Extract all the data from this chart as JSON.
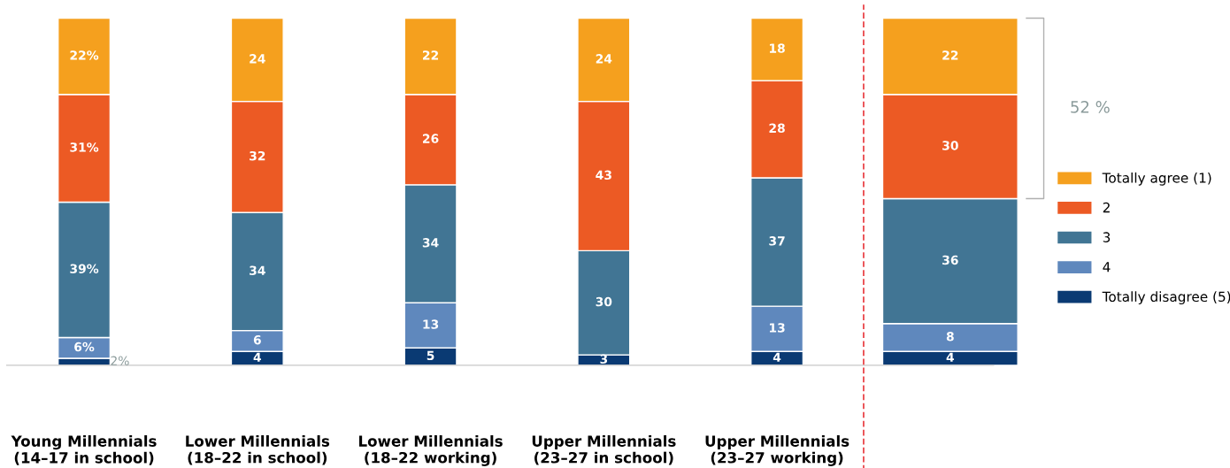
{
  "chart_data": {
    "type": "bar",
    "stacked": true,
    "categories": [
      "Young Millennials\n(14–17 in school)",
      "Lower Millennials\n(18–22 in school)",
      "Lower Millennials\n(18–22 working)",
      "Upper Millennials\n(23–27 in school)",
      "Upper Millennials\n(23–27 working)",
      null
    ],
    "series": [
      {
        "name": "Totally disagree (5)",
        "color": "#0a3a73",
        "values": [
          2,
          4,
          5,
          3,
          4,
          4
        ],
        "value_labels": [
          "2%",
          "4",
          "5",
          "3",
          "4",
          "4"
        ]
      },
      {
        "name": "4",
        "color": "#5f88bd",
        "values": [
          6,
          6,
          13,
          null,
          13,
          8
        ],
        "value_labels": [
          "6%",
          "6",
          "13",
          null,
          "13",
          "8"
        ]
      },
      {
        "name": "3",
        "color": "#417594",
        "values": [
          39,
          34,
          34,
          30,
          37,
          36
        ],
        "value_labels": [
          "39%",
          "34",
          "34",
          "30",
          "37",
          "36"
        ]
      },
      {
        "name": "2",
        "color": "#ec5a24",
        "values": [
          31,
          32,
          26,
          43,
          28,
          30
        ],
        "value_labels": [
          "31%",
          "32",
          "26",
          "43",
          "28",
          "30"
        ]
      },
      {
        "name": "Totally agree (1)",
        "color": "#f5a01e",
        "values": [
          22,
          24,
          22,
          24,
          18,
          22
        ],
        "value_labels": [
          "22%",
          "24",
          "22",
          "24",
          "18",
          "22"
        ]
      }
    ],
    "annotations": [
      "52 %"
    ],
    "legend": "right",
    "grid": false
  }
}
